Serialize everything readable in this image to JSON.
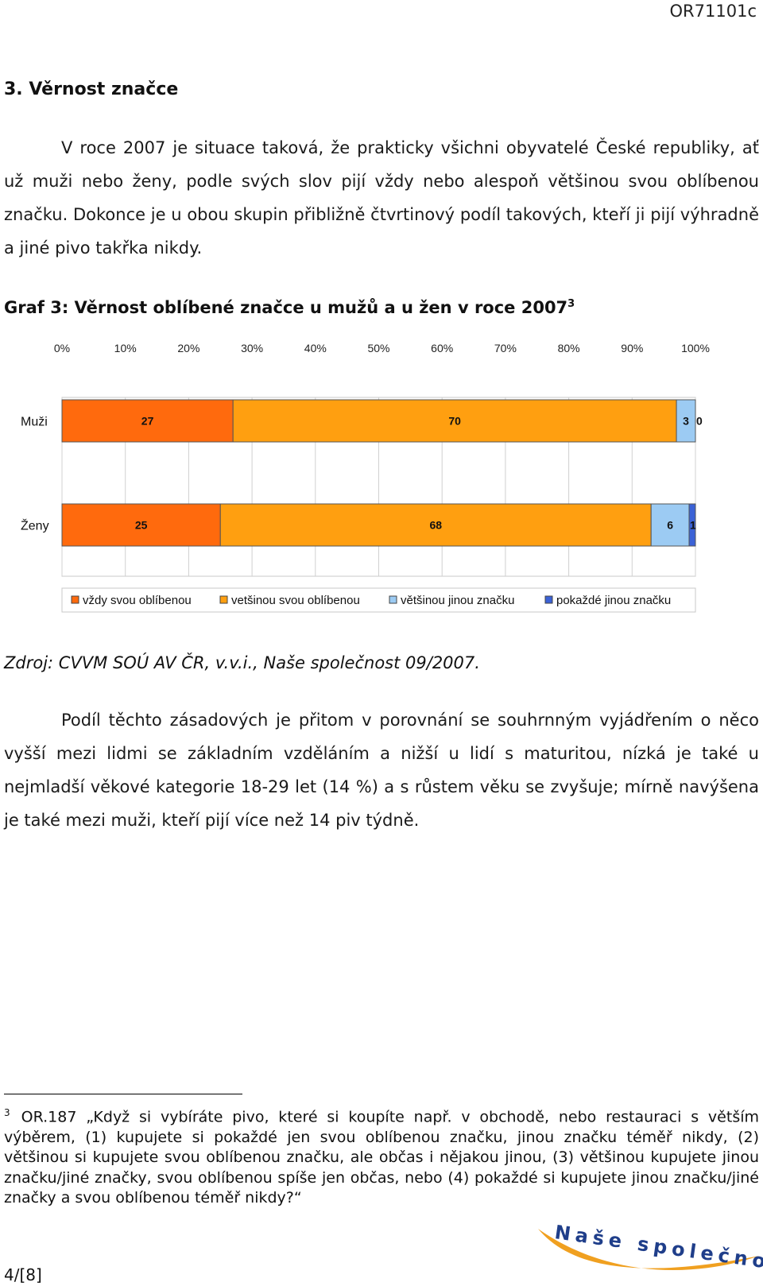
{
  "header": {
    "doc_code": "OR71101c"
  },
  "section": {
    "heading": "3. Věrnost značce"
  },
  "paragraphs": {
    "p1": "V roce 2007 je situace taková, že prakticky všichni obyvatelé České republiky, ať už muži nebo ženy, podle svých slov pijí vždy nebo alespoň většinou svou oblíbenou značku. Dokonce je u obou skupin přibližně čtvrtinový podíl takových, kteří ji pijí výhradně a jiné pivo takřka nikdy.",
    "p2": "Podíl těchto zásadových je přitom v porovnání se souhrnným vyjádřením o něco vyšší mezi lidmi se základním vzděláním a nižší u lidí s maturitou, nízká je také u nejmladší věkové kategorie 18-29 let (14 %) a s růstem věku se zvyšuje; mírně navýšena je také mezi muži, kteří pijí více než 14 piv týdně."
  },
  "chart_caption": {
    "text": "Graf 3: Věrnost oblíbené značce u mužů a u žen v roce 2007",
    "footnote_ref": "3"
  },
  "chart_data": {
    "type": "bar",
    "orientation": "horizontal-stacked",
    "x_ticks": [
      "0%",
      "10%",
      "20%",
      "30%",
      "40%",
      "50%",
      "60%",
      "70%",
      "80%",
      "90%",
      "100%"
    ],
    "xlim": [
      0,
      100
    ],
    "grid": true,
    "legend_position": "bottom",
    "categories": [
      "Muži",
      "Ženy"
    ],
    "series": [
      {
        "name": "vždy svou oblíbenou",
        "color": "#ff6a0d",
        "values": [
          27,
          25
        ]
      },
      {
        "name": "vetšinou svou oblíbenou",
        "color": "#ff9f10",
        "values": [
          70,
          68
        ]
      },
      {
        "name": "většinou jinou značku",
        "color": "#9ccbf3",
        "values": [
          3,
          6
        ]
      },
      {
        "name": "pokaždé jinou značku",
        "color": "#3b62d6",
        "values": [
          0,
          1
        ]
      }
    ]
  },
  "source": {
    "text": "Zdroj:  CVVM SOÚ AV ČR, v.v.i., Naše společnost 09/2007."
  },
  "footnote": {
    "number": "3",
    "text": "OR.187 „Když si vybíráte pivo, které si koupíte např. v obchodě, nebo restauraci s větším výběrem, (1) kupujete si pokaždé jen svou oblíbenou značku, jinou značku téměř nikdy, (2) většinou si kupujete svou oblíbenou značku, ale občas i nějakou jinou, (3) většinou kupujete jinou značku/jiné značky, svou oblíbenou spíše jen občas, nebo (4) pokaždé si kupujete jinou značku/jiné značky a svou oblíbenou téměř nikdy?“"
  },
  "footer": {
    "page_number": "4/[8]"
  },
  "logo": {
    "text": "Naše společnost",
    "color_text": "#1f3e8a",
    "color_swoosh": "#f0a020"
  }
}
